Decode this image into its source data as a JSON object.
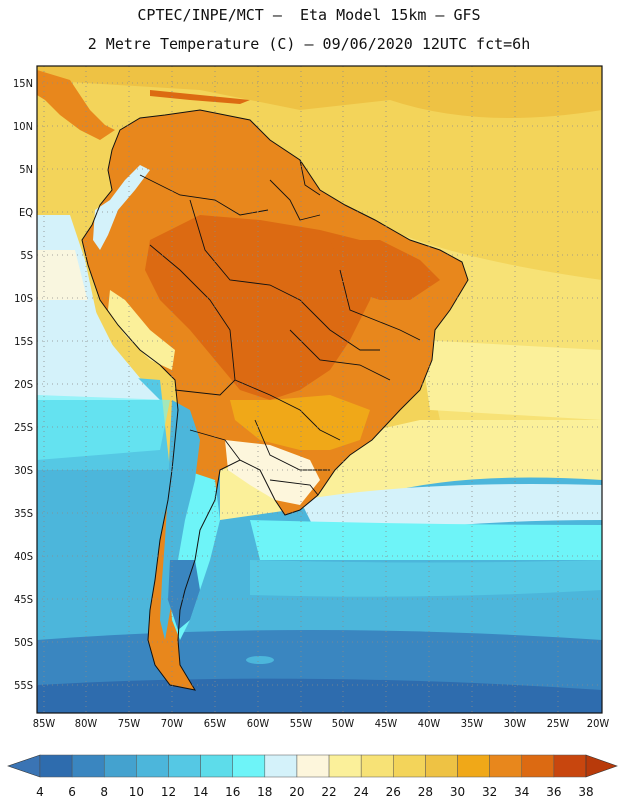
{
  "header": {
    "title_line1": "CPTEC/INPE/MCT –  Eta Model 15km – GFS",
    "title_line2": "2 Metre Temperature (C) – 09/06/2020 12UTC fct=6h"
  },
  "map": {
    "region": "South America",
    "lat_labels": [
      "15N",
      "10N",
      "5N",
      "EQ",
      "5S",
      "10S",
      "15S",
      "20S",
      "25S",
      "30S",
      "35S",
      "40S",
      "45S",
      "50S",
      "55S"
    ],
    "lon_labels": [
      "85W",
      "80W",
      "75W",
      "70W",
      "65W",
      "60W",
      "55W",
      "50W",
      "45W",
      "40W",
      "35W",
      "30W",
      "25W",
      "20W"
    ]
  },
  "colorbar": {
    "levels": [
      "4",
      "6",
      "8",
      "10",
      "12",
      "14",
      "16",
      "18",
      "20",
      "22",
      "24",
      "26",
      "28",
      "30",
      "32",
      "34",
      "36",
      "38"
    ],
    "colors": [
      "#2e6cae",
      "#3a86c0",
      "#44a2cf",
      "#4cb6db",
      "#55c8e4",
      "#5ddcea",
      "#6ef4f8",
      "#d4f2fa",
      "#fdf6dc",
      "#fbf09a",
      "#f7e276",
      "#f3d45a",
      "#eec244",
      "#f0a818",
      "#e8871c",
      "#dc6a12",
      "#c8460e",
      "#3a74b4",
      "#b83a0a"
    ]
  }
}
